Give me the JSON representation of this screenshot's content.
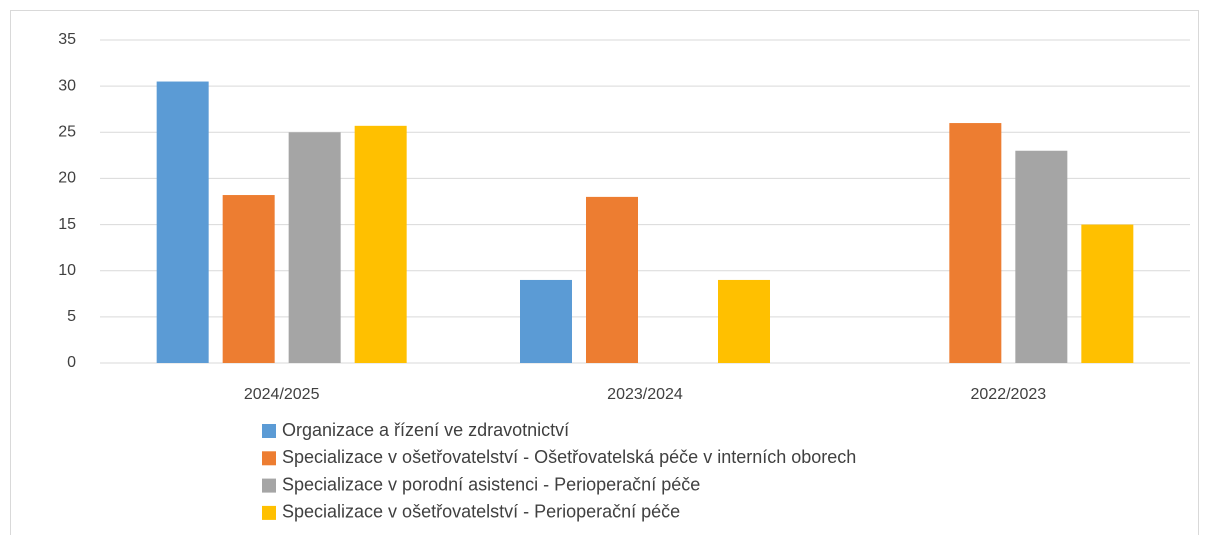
{
  "chart_data": {
    "type": "bar",
    "categories": [
      "2024/2025",
      "2023/2024",
      "2022/2023"
    ],
    "series": [
      {
        "name": "Organizace a řízení ve zdravotnictví",
        "color": "#5b9bd5",
        "values": [
          30.5,
          9,
          null
        ]
      },
      {
        "name": "Specializace v ošetřovatelství - Ošetřovatelská péče v interních oborech",
        "color": "#ed7d31",
        "values": [
          18.2,
          18,
          26
        ]
      },
      {
        "name": "Specializace v porodní asistenci - Perioperační péče",
        "color": "#a5a5a5",
        "values": [
          25,
          null,
          23
        ]
      },
      {
        "name": "Specializace v ošetřovatelství - Perioperační péče",
        "color": "#ffc000",
        "values": [
          25.7,
          9,
          15
        ]
      }
    ],
    "ylim": [
      0,
      35
    ],
    "yticks": [
      0,
      5,
      10,
      15,
      20,
      25,
      30,
      35
    ],
    "grid": true,
    "legend": "bottom"
  }
}
